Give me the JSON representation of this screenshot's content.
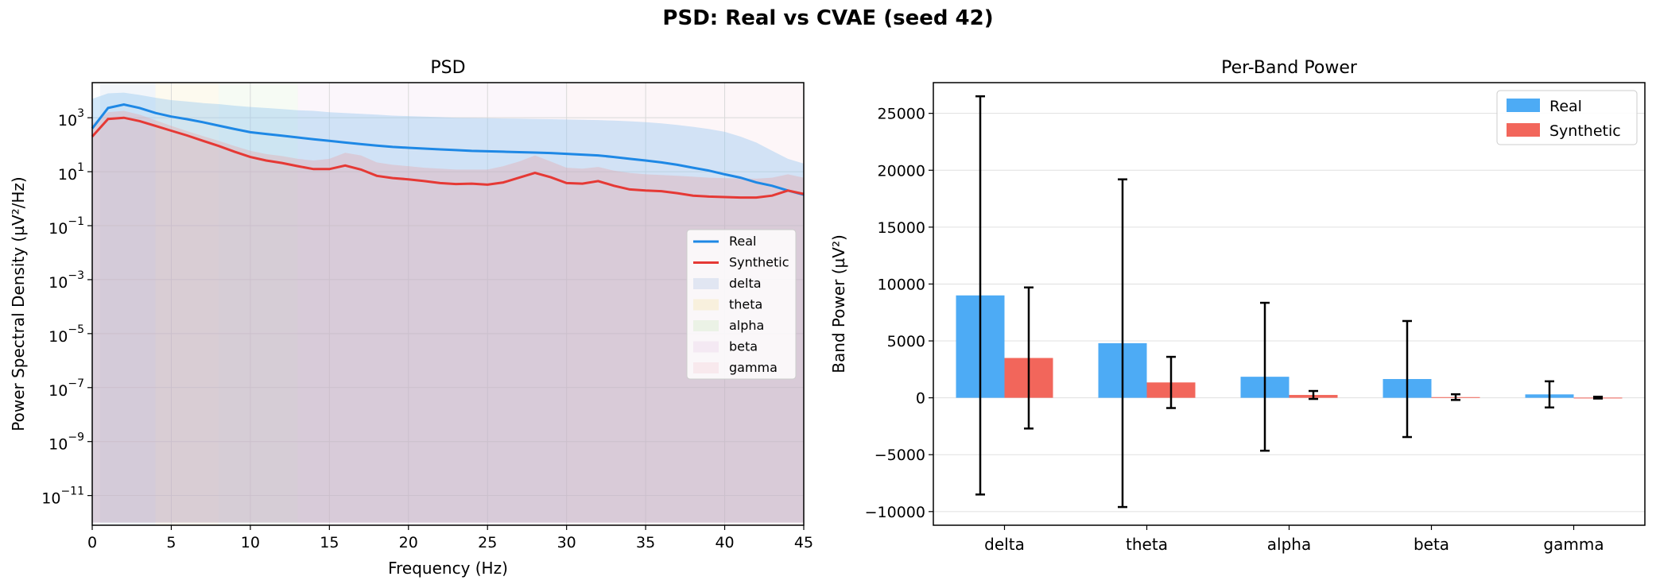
{
  "figure_title": "PSD: Real vs CVAE (seed 42)",
  "colors": {
    "real": "#1e88e5",
    "synthetic": "#e53935",
    "real_bar": "#4dabf5",
    "synthetic_bar": "#f2665b"
  },
  "chart_data": [
    {
      "type": "line",
      "title": "PSD",
      "xlabel": "Frequency (Hz)",
      "ylabel": "Power Spectral Density (µV²/Hz)",
      "xlim": [
        0,
        45
      ],
      "ylim_log10": [
        -12.1,
        4.3
      ],
      "y_scale": "log",
      "x_ticks": [
        0,
        5,
        10,
        15,
        20,
        25,
        30,
        35,
        40,
        45
      ],
      "x_tick_labels": [
        "0",
        "5",
        "10",
        "15",
        "20",
        "25",
        "30",
        "35",
        "40",
        "45"
      ],
      "y_tick_exponents": [
        3,
        1,
        -1,
        -3,
        -5,
        -7,
        -9,
        -11
      ],
      "y_tick_labels": [
        "10",
        "10",
        "10",
        "10",
        "10",
        "10",
        "10",
        "10"
      ],
      "y_tick_superscripts": [
        "3",
        "1",
        "−1",
        "−3",
        "−5",
        "−7",
        "−9",
        "−11"
      ],
      "grid": true,
      "legend_position": "center-right",
      "legend": [
        "Real",
        "Synthetic",
        "delta",
        "theta",
        "alpha",
        "beta",
        "gamma"
      ],
      "bands": [
        {
          "name": "delta",
          "range": [
            0.5,
            4
          ],
          "color": "#b3c7e6"
        },
        {
          "name": "theta",
          "range": [
            4,
            8
          ],
          "color": "#f3e3a8"
        },
        {
          "name": "alpha",
          "range": [
            8,
            13
          ],
          "color": "#cfe8c3"
        },
        {
          "name": "beta",
          "range": [
            13,
            30
          ],
          "color": "#e8cfe8"
        },
        {
          "name": "gamma",
          "range": [
            30,
            45
          ],
          "color": "#f3cfd6"
        }
      ],
      "x": [
        0,
        1,
        2,
        3,
        4,
        5,
        6,
        7,
        8,
        9,
        10,
        11,
        12,
        13,
        14,
        15,
        16,
        17,
        18,
        19,
        20,
        21,
        22,
        23,
        24,
        25,
        26,
        27,
        28,
        29,
        30,
        31,
        32,
        33,
        34,
        35,
        36,
        37,
        38,
        39,
        40,
        41,
        42,
        43,
        44,
        45
      ],
      "series": [
        {
          "name": "Real",
          "values": [
            400,
            2300,
            3100,
            2300,
            1500,
            1100,
            880,
            680,
            510,
            380,
            290,
            250,
            215,
            185,
            160,
            140,
            120,
            105,
            93,
            83,
            77,
            72,
            67,
            63,
            59,
            57,
            55,
            53,
            51,
            49,
            46,
            43,
            40,
            35,
            30,
            26,
            22,
            18,
            14,
            11,
            8,
            6,
            4,
            3,
            2,
            1.4
          ],
          "band_upper": [
            5000,
            8000,
            8500,
            7000,
            5500,
            4500,
            4000,
            3500,
            3200,
            2800,
            2500,
            2300,
            2100,
            1900,
            1800,
            1600,
            1500,
            1400,
            1300,
            1200,
            1150,
            1100,
            1050,
            1000,
            980,
            960,
            940,
            920,
            900,
            880,
            860,
            840,
            820,
            780,
            740,
            680,
            620,
            540,
            460,
            380,
            300,
            200,
            120,
            60,
            30,
            20
          ],
          "band_lower": [
            1e-12,
            1e-12,
            1e-12,
            1e-12,
            1e-12,
            1e-12,
            1e-12,
            1e-12,
            1e-12,
            1e-12,
            1e-12,
            1e-12,
            1e-12,
            1e-12,
            1e-12,
            1e-12,
            1e-12,
            1e-12,
            1e-12,
            1e-12,
            1e-12,
            1e-12,
            1e-12,
            1e-12,
            1e-12,
            1e-12,
            1e-12,
            1e-12,
            1e-12,
            1e-12,
            1e-12,
            1e-12,
            1e-12,
            1e-12,
            1e-12,
            1e-12,
            1e-12,
            1e-12,
            1e-12,
            1e-12,
            1e-12,
            1e-12,
            1e-12,
            1e-12,
            1e-12,
            1e-12
          ]
        },
        {
          "name": "Synthetic",
          "values": [
            200,
            900,
            1000,
            750,
            500,
            330,
            220,
            140,
            90,
            55,
            35,
            26,
            21,
            16,
            12.5,
            12.5,
            17,
            12,
            7,
            5.8,
            5.2,
            4.5,
            3.8,
            3.5,
            3.6,
            3.3,
            4,
            6,
            9,
            6.2,
            3.8,
            3.6,
            4.5,
            3,
            2.2,
            2,
            1.9,
            1.6,
            1.3,
            1.2,
            1.15,
            1.1,
            1.1,
            1.3,
            2,
            1.5
          ],
          "band_upper": [
            600,
            1600,
            1800,
            1300,
            800,
            500,
            320,
            210,
            140,
            90,
            60,
            45,
            38,
            30,
            26,
            30,
            50,
            40,
            22,
            18,
            16,
            14,
            13,
            12,
            12,
            12,
            16,
            24,
            40,
            24,
            14,
            13,
            15,
            11,
            9,
            8,
            7.5,
            7,
            6.5,
            6,
            5.8,
            5.6,
            5.5,
            6,
            8,
            6
          ],
          "band_lower": [
            1e-12,
            1e-12,
            1e-12,
            1e-12,
            1e-12,
            1e-12,
            1e-12,
            1e-12,
            1e-12,
            1e-12,
            1e-12,
            1e-12,
            1e-12,
            1e-12,
            1e-12,
            1e-12,
            1e-12,
            1e-12,
            1e-12,
            1e-12,
            1e-12,
            1e-12,
            1e-12,
            1e-12,
            1e-12,
            1e-12,
            1e-12,
            1e-12,
            1e-12,
            1e-12,
            1e-12,
            1e-12,
            1e-12,
            1e-12,
            1e-12,
            1e-12,
            1e-12,
            1e-12,
            1e-12,
            1e-12,
            1e-12,
            1e-12,
            1e-12,
            1e-12,
            1e-12,
            1e-12
          ]
        }
      ]
    },
    {
      "type": "bar",
      "title": "Per-Band Power",
      "xlabel": "",
      "ylabel": "Band Power (µV²)",
      "categories": [
        "delta",
        "theta",
        "alpha",
        "beta",
        "gamma"
      ],
      "ylim": [
        -11200,
        27700
      ],
      "y_ticks": [
        -10000,
        -5000,
        0,
        5000,
        10000,
        15000,
        20000,
        25000
      ],
      "y_tick_labels": [
        "−10000",
        "−5000",
        "0",
        "5000",
        "10000",
        "15000",
        "20000",
        "25000"
      ],
      "grid": true,
      "legend_position": "top-right",
      "series": [
        {
          "name": "Real",
          "values": [
            9000,
            4800,
            1850,
            1650,
            300
          ],
          "errors": [
            17500,
            14400,
            6500,
            5100,
            1150
          ]
        },
        {
          "name": "Synthetic",
          "values": [
            3500,
            1350,
            250,
            60,
            15
          ],
          "errors": [
            6200,
            2250,
            350,
            250,
            80
          ]
        }
      ]
    }
  ]
}
